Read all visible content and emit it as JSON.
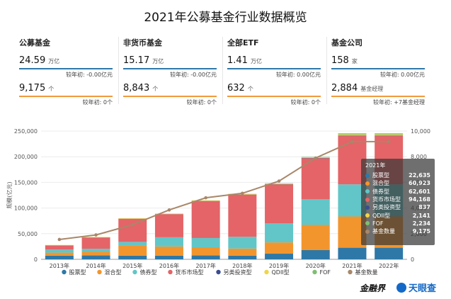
{
  "title": "2021年公募基金行业数据概览",
  "cards": [
    {
      "title": "公募基金",
      "value1": "24.59",
      "unit1": "万亿",
      "change1": "较年初: -0.00亿元",
      "value2": "9,175",
      "unit2": "个",
      "change2": "较年初: 0个"
    },
    {
      "title": "非货币基金",
      "value1": "15.17",
      "unit1": "万亿",
      "change1": "较年初: -0.00亿元",
      "value2": "8,843",
      "unit2": "个",
      "change2": "较年初: 0个"
    },
    {
      "title": "全部ETF",
      "value1": "1.41",
      "unit1": "万亿",
      "change1": "较年初: 0.00亿元",
      "value2": "632",
      "unit2": "个",
      "change2": "较年初: 0个"
    },
    {
      "title": "基金公司",
      "value1": "158",
      "unit1": "家",
      "change1": "较年初: 0.00亿元",
      "value2": "2,884",
      "unit2": "基金经理",
      "change2": "较年初: +7基金经理"
    }
  ],
  "chart_data": {
    "type": "bar",
    "stacked": true,
    "ylabel": "规模(亿元)",
    "ylim": [
      0,
      250000
    ],
    "y2lim": [
      0,
      10000
    ],
    "y_ticks": [
      "0",
      "50,000",
      "100,000",
      "150,000",
      "200,000",
      "250,000"
    ],
    "y2_ticks": [
      "0",
      "2,000",
      "4,000",
      "6,000",
      "8,000",
      "10,000"
    ],
    "categories": [
      "2013年",
      "2014年",
      "2015年",
      "2016年",
      "2017年",
      "2018年",
      "2019年",
      "2020年",
      "2021年",
      "2022年"
    ],
    "series": [
      {
        "name": "股票型",
        "color": "#2e78a8",
        "values": [
          7000,
          7500,
          7000,
          7000,
          7500,
          7000,
          11000,
          18000,
          22635,
          22635
        ]
      },
      {
        "name": "混合型",
        "color": "#f3952d",
        "values": [
          6000,
          7000,
          20000,
          18000,
          16000,
          14000,
          22000,
          49000,
          60923,
          60923
        ]
      },
      {
        "name": "债券型",
        "color": "#62c6c8",
        "values": [
          6000,
          6000,
          7000,
          18000,
          18000,
          23000,
          37000,
          50000,
          62601,
          62601
        ]
      },
      {
        "name": "货币市场型",
        "color": "#e46467",
        "values": [
          8000,
          22000,
          45000,
          45000,
          72000,
          82000,
          76000,
          80000,
          94168,
          94168
        ]
      },
      {
        "name": "另类投资型",
        "color": "#3a4d8f",
        "values": [
          200,
          200,
          200,
          200,
          300,
          300,
          400,
          500,
          837,
          837
        ]
      },
      {
        "name": "QDII型",
        "color": "#f0d54b",
        "values": [
          800,
          800,
          1000,
          1100,
          1200,
          1300,
          1400,
          1600,
          2141,
          2141
        ]
      },
      {
        "name": "FOF",
        "color": "#7fbf73",
        "values": [
          0,
          0,
          0,
          0,
          100,
          200,
          400,
          800,
          2234,
          2234
        ]
      }
    ],
    "line": {
      "name": "基金数量",
      "color": "#a98769",
      "values": [
        1550,
        1900,
        2700,
        3850,
        4800,
        5150,
        6100,
        7900,
        9175,
        9175
      ]
    },
    "legend_position": "bottom",
    "tooltip": {
      "title": "2021年",
      "rows": [
        {
          "name": "股票型",
          "value": "22,635",
          "color": "#2e78a8"
        },
        {
          "name": "混合型",
          "value": "60,923",
          "color": "#f3952d"
        },
        {
          "name": "债券型",
          "value": "62,601",
          "color": "#62c6c8"
        },
        {
          "name": "货币市场型",
          "value": "94,168",
          "color": "#e46467"
        },
        {
          "name": "另类投资型",
          "value": "837",
          "color": "#3a4d8f"
        },
        {
          "name": "QDII型",
          "value": "2,141",
          "color": "#f0d54b"
        },
        {
          "name": "FOF",
          "value": "2,234",
          "color": "#7fbf73"
        },
        {
          "name": "基金数量",
          "value": "9,175",
          "color": "#a98769"
        }
      ]
    }
  },
  "logos": {
    "left": "金融界",
    "right": "天眼查"
  }
}
